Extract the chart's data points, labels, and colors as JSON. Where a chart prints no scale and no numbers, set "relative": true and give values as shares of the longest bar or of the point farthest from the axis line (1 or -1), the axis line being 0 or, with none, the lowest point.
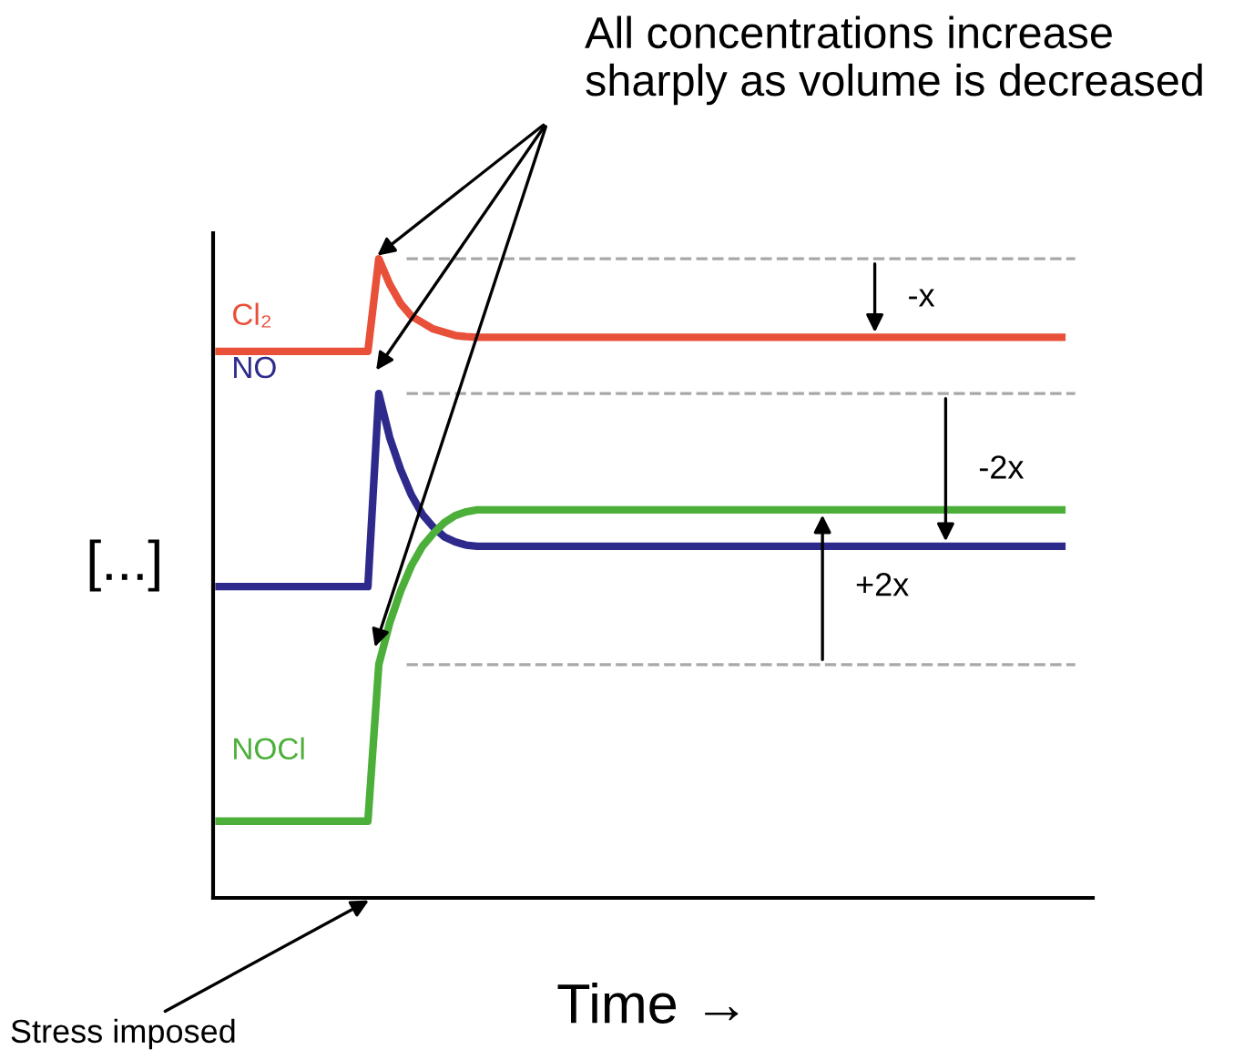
{
  "chart_data": {
    "type": "line",
    "relative": true,
    "xlabel": "Time →",
    "ylabel": "[...]",
    "line_style": "solid",
    "categories": [
      null,
      null,
      null,
      null,
      null,
      null,
      null,
      null,
      null,
      null,
      null,
      null,
      null,
      null,
      null,
      null,
      null,
      null,
      null,
      null,
      null,
      null,
      null,
      null,
      null,
      null,
      null,
      null,
      null,
      null,
      null,
      null,
      null,
      null,
      null,
      null,
      null,
      null,
      null,
      null,
      null,
      null,
      null,
      null,
      null,
      null,
      null,
      null,
      null,
      null,
      null,
      null,
      null,
      null,
      null,
      null,
      null,
      null,
      null,
      null,
      null,
      null,
      null,
      null,
      null,
      null,
      null,
      null,
      null,
      null,
      null,
      null,
      null,
      null,
      null,
      null,
      null,
      null,
      null
    ],
    "series": [
      {
        "name": "Cl₂",
        "color": "#e8503a",
        "values": [
          0.855,
          0.855,
          0.855,
          0.855,
          0.855,
          0.855,
          0.855,
          0.855,
          0.855,
          0.855,
          0.855,
          0.855,
          0.855,
          0.855,
          0.855,
          1.0,
          0.96,
          0.93,
          0.91,
          0.9,
          0.89,
          0.885,
          0.88,
          0.878,
          0.877,
          0.877,
          0.877,
          0.877,
          0.877,
          0.877,
          0.877,
          0.877,
          0.877,
          0.877,
          0.877,
          0.877,
          0.877,
          0.877,
          0.877,
          0.877,
          0.877,
          0.877,
          0.877,
          0.877,
          0.877,
          0.877,
          0.877,
          0.877,
          0.877,
          0.877,
          0.877,
          0.877,
          0.877,
          0.877,
          0.877,
          0.877,
          0.877,
          0.877,
          0.877,
          0.877,
          0.877,
          0.877,
          0.877,
          0.877,
          0.877,
          0.877,
          0.877,
          0.877,
          0.877,
          0.877,
          0.877,
          0.877,
          0.877,
          0.877,
          0.877,
          0.877,
          0.877,
          0.877,
          0.877
        ]
      },
      {
        "name": "NO",
        "color": "#2e2a8c",
        "values": [
          0.487,
          0.487,
          0.487,
          0.487,
          0.487,
          0.487,
          0.487,
          0.487,
          0.487,
          0.487,
          0.487,
          0.487,
          0.487,
          0.487,
          0.487,
          0.789,
          0.72,
          0.67,
          0.63,
          0.6,
          0.58,
          0.565,
          0.557,
          0.552,
          0.55,
          0.55,
          0.55,
          0.55,
          0.55,
          0.55,
          0.55,
          0.55,
          0.55,
          0.55,
          0.55,
          0.55,
          0.55,
          0.55,
          0.55,
          0.55,
          0.55,
          0.55,
          0.55,
          0.55,
          0.55,
          0.55,
          0.55,
          0.55,
          0.55,
          0.55,
          0.55,
          0.55,
          0.55,
          0.55,
          0.55,
          0.55,
          0.55,
          0.55,
          0.55,
          0.55,
          0.55,
          0.55,
          0.55,
          0.55,
          0.55,
          0.55,
          0.55,
          0.55,
          0.55,
          0.55,
          0.55,
          0.55,
          0.55,
          0.55,
          0.55,
          0.55,
          0.55,
          0.55,
          0.55
        ]
      },
      {
        "name": "NOCl",
        "color": "#4caf3a",
        "values": [
          0.12,
          0.12,
          0.12,
          0.12,
          0.12,
          0.12,
          0.12,
          0.12,
          0.12,
          0.12,
          0.12,
          0.12,
          0.12,
          0.12,
          0.12,
          0.365,
          0.43,
          0.48,
          0.52,
          0.55,
          0.57,
          0.587,
          0.598,
          0.604,
          0.607,
          0.607,
          0.607,
          0.607,
          0.607,
          0.607,
          0.607,
          0.607,
          0.607,
          0.607,
          0.607,
          0.607,
          0.607,
          0.607,
          0.607,
          0.607,
          0.607,
          0.607,
          0.607,
          0.607,
          0.607,
          0.607,
          0.607,
          0.607,
          0.607,
          0.607,
          0.607,
          0.607,
          0.607,
          0.607,
          0.607,
          0.607,
          0.607,
          0.607,
          0.607,
          0.607,
          0.607,
          0.607,
          0.607,
          0.607,
          0.607,
          0.607,
          0.607,
          0.607,
          0.607,
          0.607,
          0.607,
          0.607,
          0.607,
          0.607,
          0.607,
          0.607,
          0.607,
          0.607,
          0.607
        ]
      }
    ],
    "ref_lines": [
      {
        "axis": "y",
        "value": 1.0,
        "label": null,
        "color": "#a8a8a8",
        "line_style": "dashed"
      },
      {
        "axis": "y",
        "value": 0.789,
        "label": null,
        "color": "#a8a8a8",
        "line_style": "dashed"
      },
      {
        "axis": "y",
        "value": 0.365,
        "label": null,
        "color": "#a8a8a8",
        "line_style": "dashed"
      }
    ],
    "annotations": [
      "All concentrations increase sharply as volume is decreased",
      "-x",
      "-2x",
      "+2x",
      "Stress imposed"
    ]
  }
}
